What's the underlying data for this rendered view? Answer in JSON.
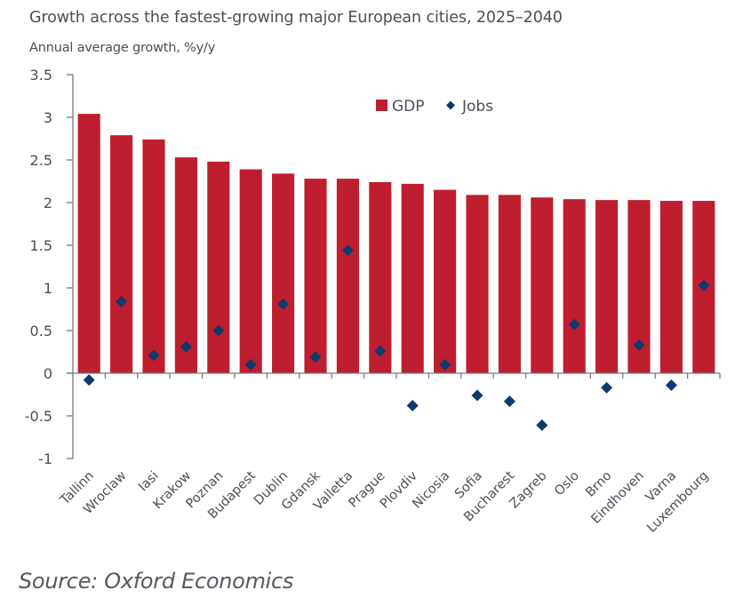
{
  "colors": {
    "gdp": "#BE1E2D",
    "jobs": "#0B3A6E",
    "axis": "#7a7a7a",
    "text": "#4a4f58"
  },
  "chart_data": {
    "type": "bar",
    "title": "Growth across the fastest-growing major European cities, 2025–2040",
    "subtitle": "Annual average growth, %y/y",
    "xlabel": "",
    "ylabel": "Annual average growth, %y/y",
    "ylim": [
      -1,
      3.5
    ],
    "yticks": [
      3.5,
      3,
      2.5,
      2,
      1.5,
      1,
      0.5,
      0,
      -0.5,
      -1
    ],
    "ytick_labels": [
      "3.5",
      "3",
      "2.5",
      "2",
      "1.5",
      "1",
      "0.5",
      "0",
      "-0.5",
      "-1"
    ],
    "grid": false,
    "legend": {
      "placement": "top-center",
      "entries": [
        {
          "name": "GDP",
          "marker": "square"
        },
        {
          "name": "Jobs",
          "marker": "diamond"
        }
      ]
    },
    "categories": [
      "Tallinn",
      "Wroclaw",
      "Iasi",
      "Krakow",
      "Poznan",
      "Budapest",
      "Dublin",
      "Gdansk",
      "Valletta",
      "Prague",
      "Plovdiv",
      "Nicosia",
      "Sofia",
      "Bucharest",
      "Zagreb",
      "Oslo",
      "Brno",
      "Eindhoven",
      "Varna",
      "Luxembourg"
    ],
    "series": [
      {
        "name": "GDP",
        "type": "bar",
        "values": [
          3.04,
          2.79,
          2.74,
          2.53,
          2.48,
          2.39,
          2.34,
          2.28,
          2.28,
          2.24,
          2.22,
          2.15,
          2.09,
          2.09,
          2.06,
          2.04,
          2.03,
          2.03,
          2.02,
          2.02
        ]
      },
      {
        "name": "Jobs",
        "type": "scatter",
        "marker": "diamond",
        "values": [
          -0.08,
          0.84,
          0.21,
          0.31,
          0.5,
          0.1,
          0.81,
          0.19,
          1.44,
          0.26,
          -0.38,
          0.1,
          -0.26,
          -0.33,
          -0.61,
          0.57,
          -0.17,
          0.33,
          -0.14,
          1.03
        ]
      }
    ],
    "source": "Source: Oxford Economics"
  }
}
